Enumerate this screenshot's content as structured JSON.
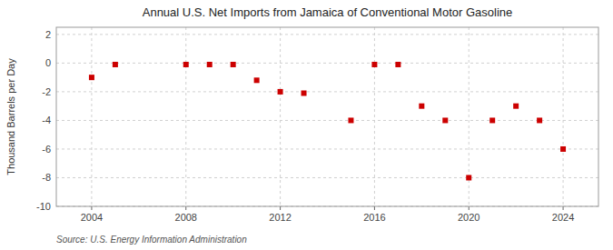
{
  "chart_data": {
    "type": "scatter",
    "title": "Annual U.S. Net Imports from Jamaica of Conventional Motor Gasoline",
    "y_label": "Thousand Barrels per Day",
    "annotations": [
      "Source: U.S. Energy Information Administration"
    ],
    "x": [
      2004,
      2005,
      2008,
      2009,
      2010,
      2011,
      2012,
      2013,
      2015,
      2016,
      2017,
      2018,
      2019,
      2020,
      2021,
      2022,
      2023,
      2024
    ],
    "values": [
      -1.0,
      -0.1,
      -0.1,
      -0.1,
      -0.1,
      -1.2,
      -2.0,
      -2.1,
      -4.0,
      -0.1,
      -0.1,
      -3.0,
      -4.0,
      -8.0,
      -4.0,
      -3.0,
      -4.0,
      -6.0
    ],
    "color": "#cc0000",
    "marker": "square",
    "xlim": [
      2002.5,
      2025.5
    ],
    "ylim": [
      -10,
      2.5
    ],
    "xticks": [
      2004,
      2008,
      2012,
      2016,
      2020,
      2024
    ],
    "yticks": [
      2,
      0,
      -2,
      -4,
      -6,
      -8,
      -10
    ],
    "grid": true
  }
}
